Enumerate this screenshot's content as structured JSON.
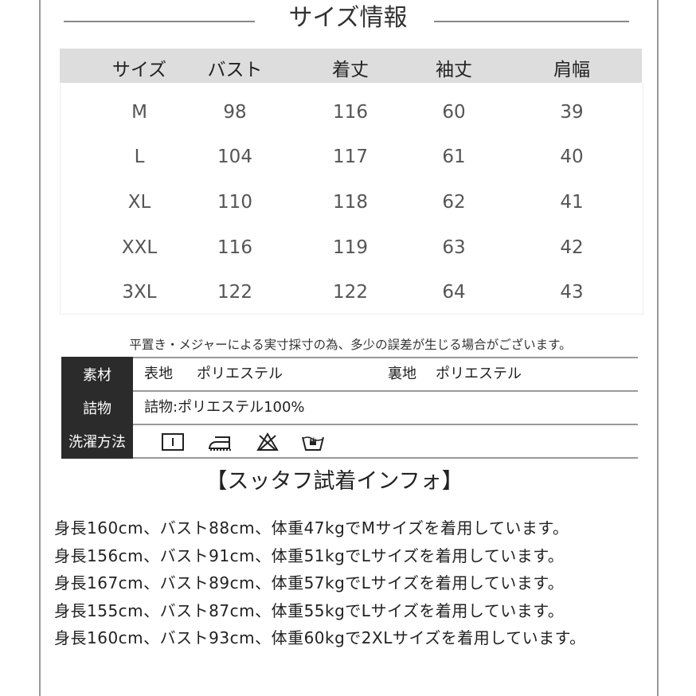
{
  "title": "サイズ情報",
  "size_table": {
    "headers": [
      "サイズ",
      "バスト",
      "着丈",
      "袖丈",
      "肩幅"
    ],
    "rows": [
      [
        "M",
        "98",
        "116",
        "60",
        "39"
      ],
      [
        "L",
        "104",
        "117",
        "61",
        "40"
      ],
      [
        "XL",
        "110",
        "118",
        "62",
        "41"
      ],
      [
        "XXL",
        "116",
        "119",
        "63",
        "42"
      ],
      [
        "3XL",
        "122",
        "122",
        "64",
        "43"
      ]
    ]
  },
  "note": "平置き・メジャーによる実寸採寸の為、多少の誤差が生じる場合がございます。",
  "material": {
    "label": "素材",
    "outer_label": "表地",
    "outer": "ポリエステル",
    "lining_label": "裏地",
    "lining": "ポリエステル",
    "fill_label": "詰物",
    "fill": "詰物:ポリエステル100%",
    "care_label": "洗濯方法",
    "care_icons": [
      "tumble-dry-icon",
      "iron-icon",
      "no-bleach-icon",
      "hand-wash-icon"
    ]
  },
  "staff": {
    "heading": "【スッタフ試着インフォ】",
    "lines": [
      "身長160cm、バスト88cm、体重47kgでMサイズを着用しています。",
      "身長156cm、バスト91cm、体重51kgでLサイズを着用しています。",
      "身長167cm、バスト89cm、体重57kgでLサイズを着用しています。",
      "身長155cm、バスト87cm、体重55kgでLサイズを着用しています。",
      "身長160cm、バスト93cm、体重60kgで2XLサイズを着用しています。"
    ]
  }
}
